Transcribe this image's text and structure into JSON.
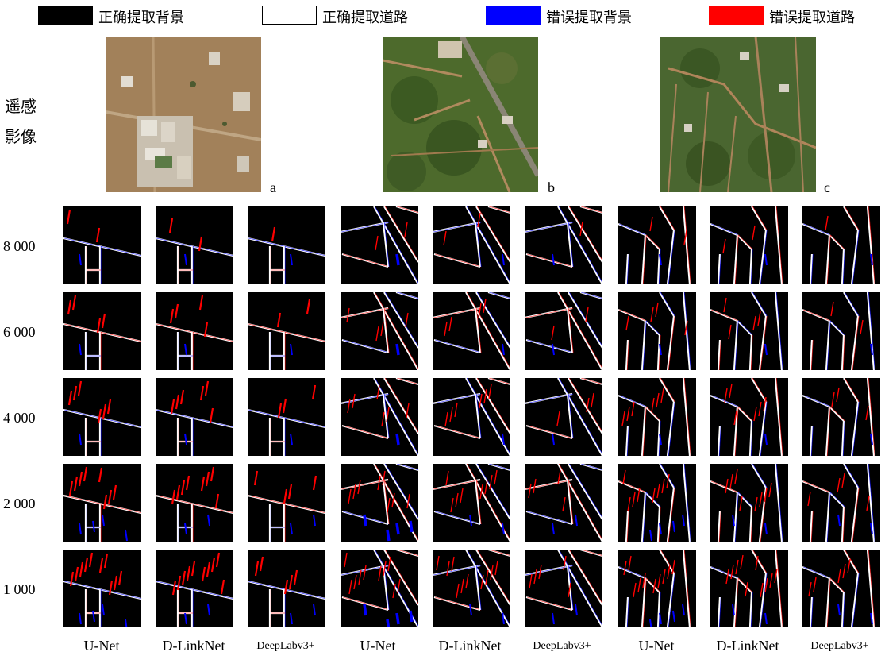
{
  "legend": [
    {
      "label": "正确提取背景",
      "color": "#000000"
    },
    {
      "label": "正确提取道路",
      "color": "#ffffff"
    },
    {
      "label": "错误提取背景",
      "color": "#0000ff"
    },
    {
      "label": "错误提取道路",
      "color": "#ff0000"
    }
  ],
  "side_label_line1": "遥感",
  "side_label_line2": "影像",
  "image_labels": [
    "a",
    "b",
    "c"
  ],
  "row_labels": [
    "8 000",
    "6 000",
    "4 000",
    "2 000",
    "1 000"
  ],
  "column_labels": [
    "U-Net",
    "D-LinkNet",
    "DeepLabv3+",
    "U-Net",
    "D-LinkNet",
    "DeepLabv3+",
    "U-Net",
    "D-LinkNet",
    "DeepLabv3+"
  ],
  "colors": {
    "road": "#ffffff",
    "false_road": "#ff0000",
    "false_background": "#0000ff",
    "background": "#000000"
  }
}
